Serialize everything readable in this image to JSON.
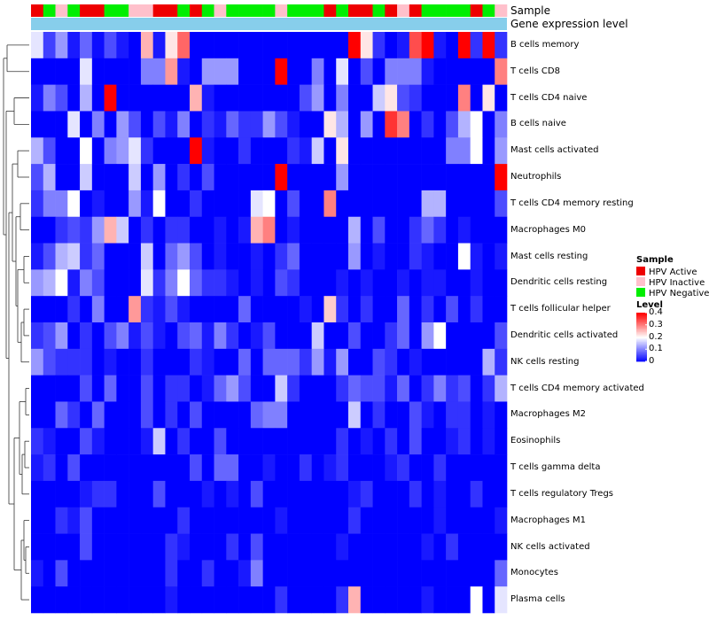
{
  "chart_data": {
    "type": "heatmap",
    "annotation_labels": [
      "Sample",
      "Gene expression level"
    ],
    "legend": {
      "sample_title": "Sample",
      "sample_items": [
        {
          "name": "HPV Active",
          "color": "#ee0000"
        },
        {
          "name": "HPV Inactive",
          "color": "#ffc0cb"
        },
        {
          "name": "HPV Negative",
          "color": "#00ee00"
        }
      ],
      "level_title": "Level",
      "level_ticks": [
        "0.4",
        "0.3",
        "0.2",
        "0.1",
        "0"
      ],
      "level_values": [
        0.4,
        0.3,
        0.2,
        0.1,
        0
      ],
      "level_range": [
        0,
        0.4
      ]
    },
    "colors": {
      "low": "#0000ff",
      "mid": "#ffffff",
      "high": "#ff0000",
      "expression_bar": "#87ceeb"
    },
    "sample_groups": [
      "A",
      "N",
      "I",
      "N",
      "A",
      "A",
      "N",
      "N",
      "I",
      "I",
      "A",
      "A",
      "N",
      "A",
      "N",
      "I",
      "N",
      "N",
      "N",
      "N",
      "I",
      "N",
      "N",
      "N",
      "A",
      "N",
      "A",
      "A",
      "N",
      "A",
      "I",
      "A",
      "N",
      "N",
      "N",
      "N",
      "A",
      "N",
      "I"
    ],
    "rows": [
      "B cells memory",
      "T cells CD8",
      "T cells CD4 naive",
      "B cells naive",
      "Mast cells activated",
      "Neutrophils",
      "T cells CD4 memory resting",
      "Macrophages M0",
      "Mast cells resting",
      "Dendritic cells resting",
      "T cells follicular helper",
      "Dendritic cells activated",
      "NK cells resting",
      "T cells CD4 memory activated",
      "Macrophages M2",
      "Eosinophils",
      "T cells gamma delta",
      "T cells regulatory  Tregs",
      "Macrophages M1",
      "NK cells activated",
      "Monocytes",
      "Plasma cells"
    ],
    "values": [
      [
        0.18,
        0.05,
        0.12,
        0.02,
        0.08,
        0.01,
        0.06,
        0.02,
        0.0,
        0.26,
        0.02,
        0.22,
        0.32,
        0.0,
        0.0,
        0.0,
        0.0,
        0.0,
        0.0,
        0.0,
        0.0,
        0.0,
        0.0,
        0.0,
        0.0,
        0.0,
        0.4,
        0.22,
        0.04,
        0.0,
        0.02,
        0.34,
        0.4,
        0.02,
        0.0,
        0.4,
        0.04,
        0.4,
        0.04
      ],
      [
        0.0,
        0.0,
        0.0,
        0.0,
        0.18,
        0.0,
        0.0,
        0.0,
        0.0,
        0.1,
        0.1,
        0.28,
        0.02,
        0.0,
        0.12,
        0.12,
        0.12,
        0.0,
        0.0,
        0.0,
        0.4,
        0.0,
        0.0,
        0.1,
        0.0,
        0.18,
        0.0,
        0.06,
        0.0,
        0.1,
        0.1,
        0.1,
        0.02,
        0.0,
        0.0,
        0.0,
        0.0,
        0.0,
        0.3
      ],
      [
        0.02,
        0.1,
        0.06,
        0.0,
        0.14,
        0.0,
        0.4,
        0.0,
        0.0,
        0.0,
        0.0,
        0.0,
        0.0,
        0.26,
        0.02,
        0.0,
        0.0,
        0.0,
        0.0,
        0.0,
        0.0,
        0.0,
        0.06,
        0.12,
        0.0,
        0.1,
        0.0,
        0.0,
        0.16,
        0.22,
        0.06,
        0.04,
        0.0,
        0.0,
        0.0,
        0.3,
        0.0,
        0.22,
        0.0
      ],
      [
        0.0,
        0.0,
        0.0,
        0.18,
        0.0,
        0.1,
        0.0,
        0.12,
        0.06,
        0.0,
        0.06,
        0.02,
        0.1,
        0.0,
        0.04,
        0.02,
        0.08,
        0.04,
        0.04,
        0.12,
        0.06,
        0.02,
        0.0,
        0.0,
        0.22,
        0.14,
        0.0,
        0.12,
        0.0,
        0.36,
        0.3,
        0.0,
        0.04,
        0.0,
        0.06,
        0.14,
        0.2,
        0.0,
        0.1
      ],
      [
        0.14,
        0.06,
        0.0,
        0.0,
        0.2,
        0.0,
        0.1,
        0.12,
        0.18,
        0.04,
        0.0,
        0.0,
        0.0,
        0.4,
        0.02,
        0.0,
        0.0,
        0.04,
        0.0,
        0.0,
        0.0,
        0.04,
        0.02,
        0.16,
        0.0,
        0.22,
        0.0,
        0.0,
        0.0,
        0.0,
        0.0,
        0.0,
        0.0,
        0.0,
        0.1,
        0.1,
        0.2,
        0.0,
        0.12
      ],
      [
        0.06,
        0.14,
        0.0,
        0.0,
        0.16,
        0.0,
        0.0,
        0.0,
        0.16,
        0.0,
        0.12,
        0.0,
        0.04,
        0.0,
        0.06,
        0.0,
        0.0,
        0.0,
        0.0,
        0.0,
        0.4,
        0.0,
        0.0,
        0.0,
        0.0,
        0.12,
        0.0,
        0.0,
        0.0,
        0.0,
        0.0,
        0.0,
        0.0,
        0.0,
        0.0,
        0.0,
        0.0,
        0.0,
        0.4
      ],
      [
        0.04,
        0.1,
        0.1,
        0.2,
        0.0,
        0.02,
        0.0,
        0.0,
        0.12,
        0.02,
        0.2,
        0.0,
        0.0,
        0.04,
        0.0,
        0.0,
        0.0,
        0.0,
        0.18,
        0.2,
        0.0,
        0.06,
        0.0,
        0.0,
        0.3,
        0.0,
        0.0,
        0.0,
        0.0,
        0.0,
        0.0,
        0.0,
        0.14,
        0.14,
        0.0,
        0.0,
        0.0,
        0.0,
        0.06
      ],
      [
        0.0,
        0.0,
        0.04,
        0.06,
        0.04,
        0.12,
        0.26,
        0.16,
        0.0,
        0.04,
        0.0,
        0.04,
        0.04,
        0.0,
        0.0,
        0.02,
        0.0,
        0.02,
        0.26,
        0.3,
        0.0,
        0.02,
        0.0,
        0.0,
        0.0,
        0.0,
        0.14,
        0.0,
        0.06,
        0.0,
        0.0,
        0.04,
        0.08,
        0.04,
        0.0,
        0.02,
        0.0,
        0.0,
        0.0
      ],
      [
        0.02,
        0.06,
        0.14,
        0.16,
        0.04,
        0.08,
        0.0,
        0.0,
        0.0,
        0.16,
        0.0,
        0.08,
        0.12,
        0.06,
        0.0,
        0.02,
        0.0,
        0.0,
        0.02,
        0.0,
        0.04,
        0.08,
        0.0,
        0.0,
        0.0,
        0.0,
        0.12,
        0.0,
        0.02,
        0.0,
        0.0,
        0.04,
        0.02,
        0.0,
        0.0,
        0.2,
        0.02,
        0.0,
        0.02
      ],
      [
        0.12,
        0.14,
        0.2,
        0.02,
        0.1,
        0.06,
        0.0,
        0.0,
        0.0,
        0.18,
        0.04,
        0.1,
        0.2,
        0.08,
        0.04,
        0.04,
        0.02,
        0.0,
        0.02,
        0.0,
        0.06,
        0.04,
        0.0,
        0.0,
        0.0,
        0.02,
        0.0,
        0.02,
        0.0,
        0.0,
        0.02,
        0.0,
        0.02,
        0.02,
        0.0,
        0.0,
        0.02,
        0.0,
        0.0
      ],
      [
        0.0,
        0.0,
        0.0,
        0.04,
        0.0,
        0.1,
        0.0,
        0.0,
        0.28,
        0.04,
        0.02,
        0.06,
        0.02,
        0.0,
        0.0,
        0.0,
        0.0,
        0.08,
        0.0,
        0.0,
        0.0,
        0.0,
        0.02,
        0.0,
        0.24,
        0.04,
        0.0,
        0.04,
        0.0,
        0.0,
        0.08,
        0.0,
        0.04,
        0.0,
        0.06,
        0.0,
        0.04,
        0.0,
        0.0
      ],
      [
        0.04,
        0.06,
        0.12,
        0.0,
        0.04,
        0.0,
        0.06,
        0.1,
        0.02,
        0.06,
        0.02,
        0.0,
        0.06,
        0.08,
        0.02,
        0.1,
        0.04,
        0.0,
        0.02,
        0.06,
        0.0,
        0.0,
        0.0,
        0.16,
        0.0,
        0.0,
        0.06,
        0.0,
        0.0,
        0.04,
        0.08,
        0.0,
        0.12,
        0.2,
        0.0,
        0.0,
        0.0,
        0.0,
        0.06
      ],
      [
        0.12,
        0.06,
        0.04,
        0.04,
        0.04,
        0.0,
        0.02,
        0.0,
        0.0,
        0.04,
        0.0,
        0.0,
        0.0,
        0.04,
        0.02,
        0.0,
        0.0,
        0.08,
        0.0,
        0.08,
        0.08,
        0.08,
        0.04,
        0.12,
        0.02,
        0.12,
        0.0,
        0.0,
        0.06,
        0.04,
        0.0,
        0.02,
        0.0,
        0.0,
        0.0,
        0.0,
        0.0,
        0.14,
        0.04
      ],
      [
        0.0,
        0.0,
        0.0,
        0.0,
        0.06,
        0.0,
        0.08,
        0.0,
        0.0,
        0.06,
        0.0,
        0.04,
        0.04,
        0.0,
        0.02,
        0.08,
        0.12,
        0.06,
        0.0,
        0.0,
        0.16,
        0.04,
        0.0,
        0.0,
        0.0,
        0.04,
        0.08,
        0.06,
        0.06,
        0.02,
        0.08,
        0.0,
        0.04,
        0.1,
        0.04,
        0.06,
        0.0,
        0.04,
        0.14
      ],
      [
        0.0,
        0.0,
        0.08,
        0.04,
        0.0,
        0.08,
        0.0,
        0.0,
        0.0,
        0.06,
        0.0,
        0.04,
        0.0,
        0.06,
        0.0,
        0.0,
        0.0,
        0.0,
        0.08,
        0.1,
        0.1,
        0.0,
        0.0,
        0.0,
        0.0,
        0.0,
        0.16,
        0.0,
        0.04,
        0.0,
        0.0,
        0.06,
        0.02,
        0.0,
        0.04,
        0.04,
        0.0,
        0.02,
        0.0
      ],
      [
        0.04,
        0.02,
        0.0,
        0.0,
        0.06,
        0.02,
        0.0,
        0.0,
        0.0,
        0.02,
        0.16,
        0.0,
        0.04,
        0.0,
        0.0,
        0.06,
        0.0,
        0.0,
        0.0,
        0.0,
        0.0,
        0.0,
        0.0,
        0.0,
        0.0,
        0.04,
        0.0,
        0.02,
        0.0,
        0.04,
        0.0,
        0.06,
        0.0,
        0.0,
        0.02,
        0.04,
        0.0,
        0.02,
        0.0
      ],
      [
        0.02,
        0.04,
        0.0,
        0.06,
        0.0,
        0.0,
        0.0,
        0.0,
        0.0,
        0.0,
        0.0,
        0.0,
        0.0,
        0.06,
        0.0,
        0.08,
        0.08,
        0.0,
        0.0,
        0.02,
        0.0,
        0.0,
        0.04,
        0.0,
        0.02,
        0.04,
        0.0,
        0.0,
        0.0,
        0.02,
        0.04,
        0.0,
        0.0,
        0.04,
        0.0,
        0.0,
        0.0,
        0.0,
        0.0
      ],
      [
        0.0,
        0.0,
        0.0,
        0.0,
        0.02,
        0.04,
        0.04,
        0.0,
        0.0,
        0.0,
        0.06,
        0.0,
        0.0,
        0.0,
        0.02,
        0.0,
        0.02,
        0.0,
        0.06,
        0.0,
        0.0,
        0.0,
        0.0,
        0.0,
        0.0,
        0.0,
        0.02,
        0.04,
        0.0,
        0.0,
        0.0,
        0.04,
        0.0,
        0.02,
        0.0,
        0.0,
        0.04,
        0.0,
        0.0
      ],
      [
        0.0,
        0.0,
        0.04,
        0.02,
        0.06,
        0.0,
        0.0,
        0.0,
        0.0,
        0.0,
        0.0,
        0.0,
        0.04,
        0.0,
        0.0,
        0.0,
        0.0,
        0.0,
        0.0,
        0.0,
        0.02,
        0.0,
        0.0,
        0.0,
        0.0,
        0.0,
        0.04,
        0.0,
        0.0,
        0.0,
        0.0,
        0.0,
        0.0,
        0.02,
        0.0,
        0.0,
        0.0,
        0.0,
        0.02
      ],
      [
        0.0,
        0.0,
        0.0,
        0.0,
        0.06,
        0.0,
        0.0,
        0.0,
        0.0,
        0.0,
        0.0,
        0.04,
        0.02,
        0.0,
        0.0,
        0.0,
        0.04,
        0.0,
        0.06,
        0.0,
        0.0,
        0.0,
        0.0,
        0.0,
        0.0,
        0.02,
        0.0,
        0.0,
        0.0,
        0.0,
        0.0,
        0.0,
        0.02,
        0.0,
        0.04,
        0.0,
        0.0,
        0.0,
        0.0
      ],
      [
        0.02,
        0.0,
        0.06,
        0.0,
        0.0,
        0.0,
        0.0,
        0.0,
        0.0,
        0.0,
        0.0,
        0.04,
        0.0,
        0.0,
        0.04,
        0.0,
        0.0,
        0.02,
        0.1,
        0.0,
        0.0,
        0.0,
        0.0,
        0.0,
        0.0,
        0.0,
        0.0,
        0.0,
        0.0,
        0.0,
        0.0,
        0.0,
        0.0,
        0.0,
        0.0,
        0.0,
        0.0,
        0.0,
        0.08
      ],
      [
        0.0,
        0.0,
        0.0,
        0.0,
        0.0,
        0.0,
        0.0,
        0.0,
        0.0,
        0.0,
        0.0,
        0.02,
        0.0,
        0.0,
        0.0,
        0.0,
        0.0,
        0.0,
        0.0,
        0.0,
        0.04,
        0.0,
        0.0,
        0.0,
        0.0,
        0.04,
        0.26,
        0.0,
        0.0,
        0.0,
        0.0,
        0.0,
        0.02,
        0.0,
        0.0,
        0.0,
        0.2,
        0.0,
        0.18
      ]
    ]
  }
}
